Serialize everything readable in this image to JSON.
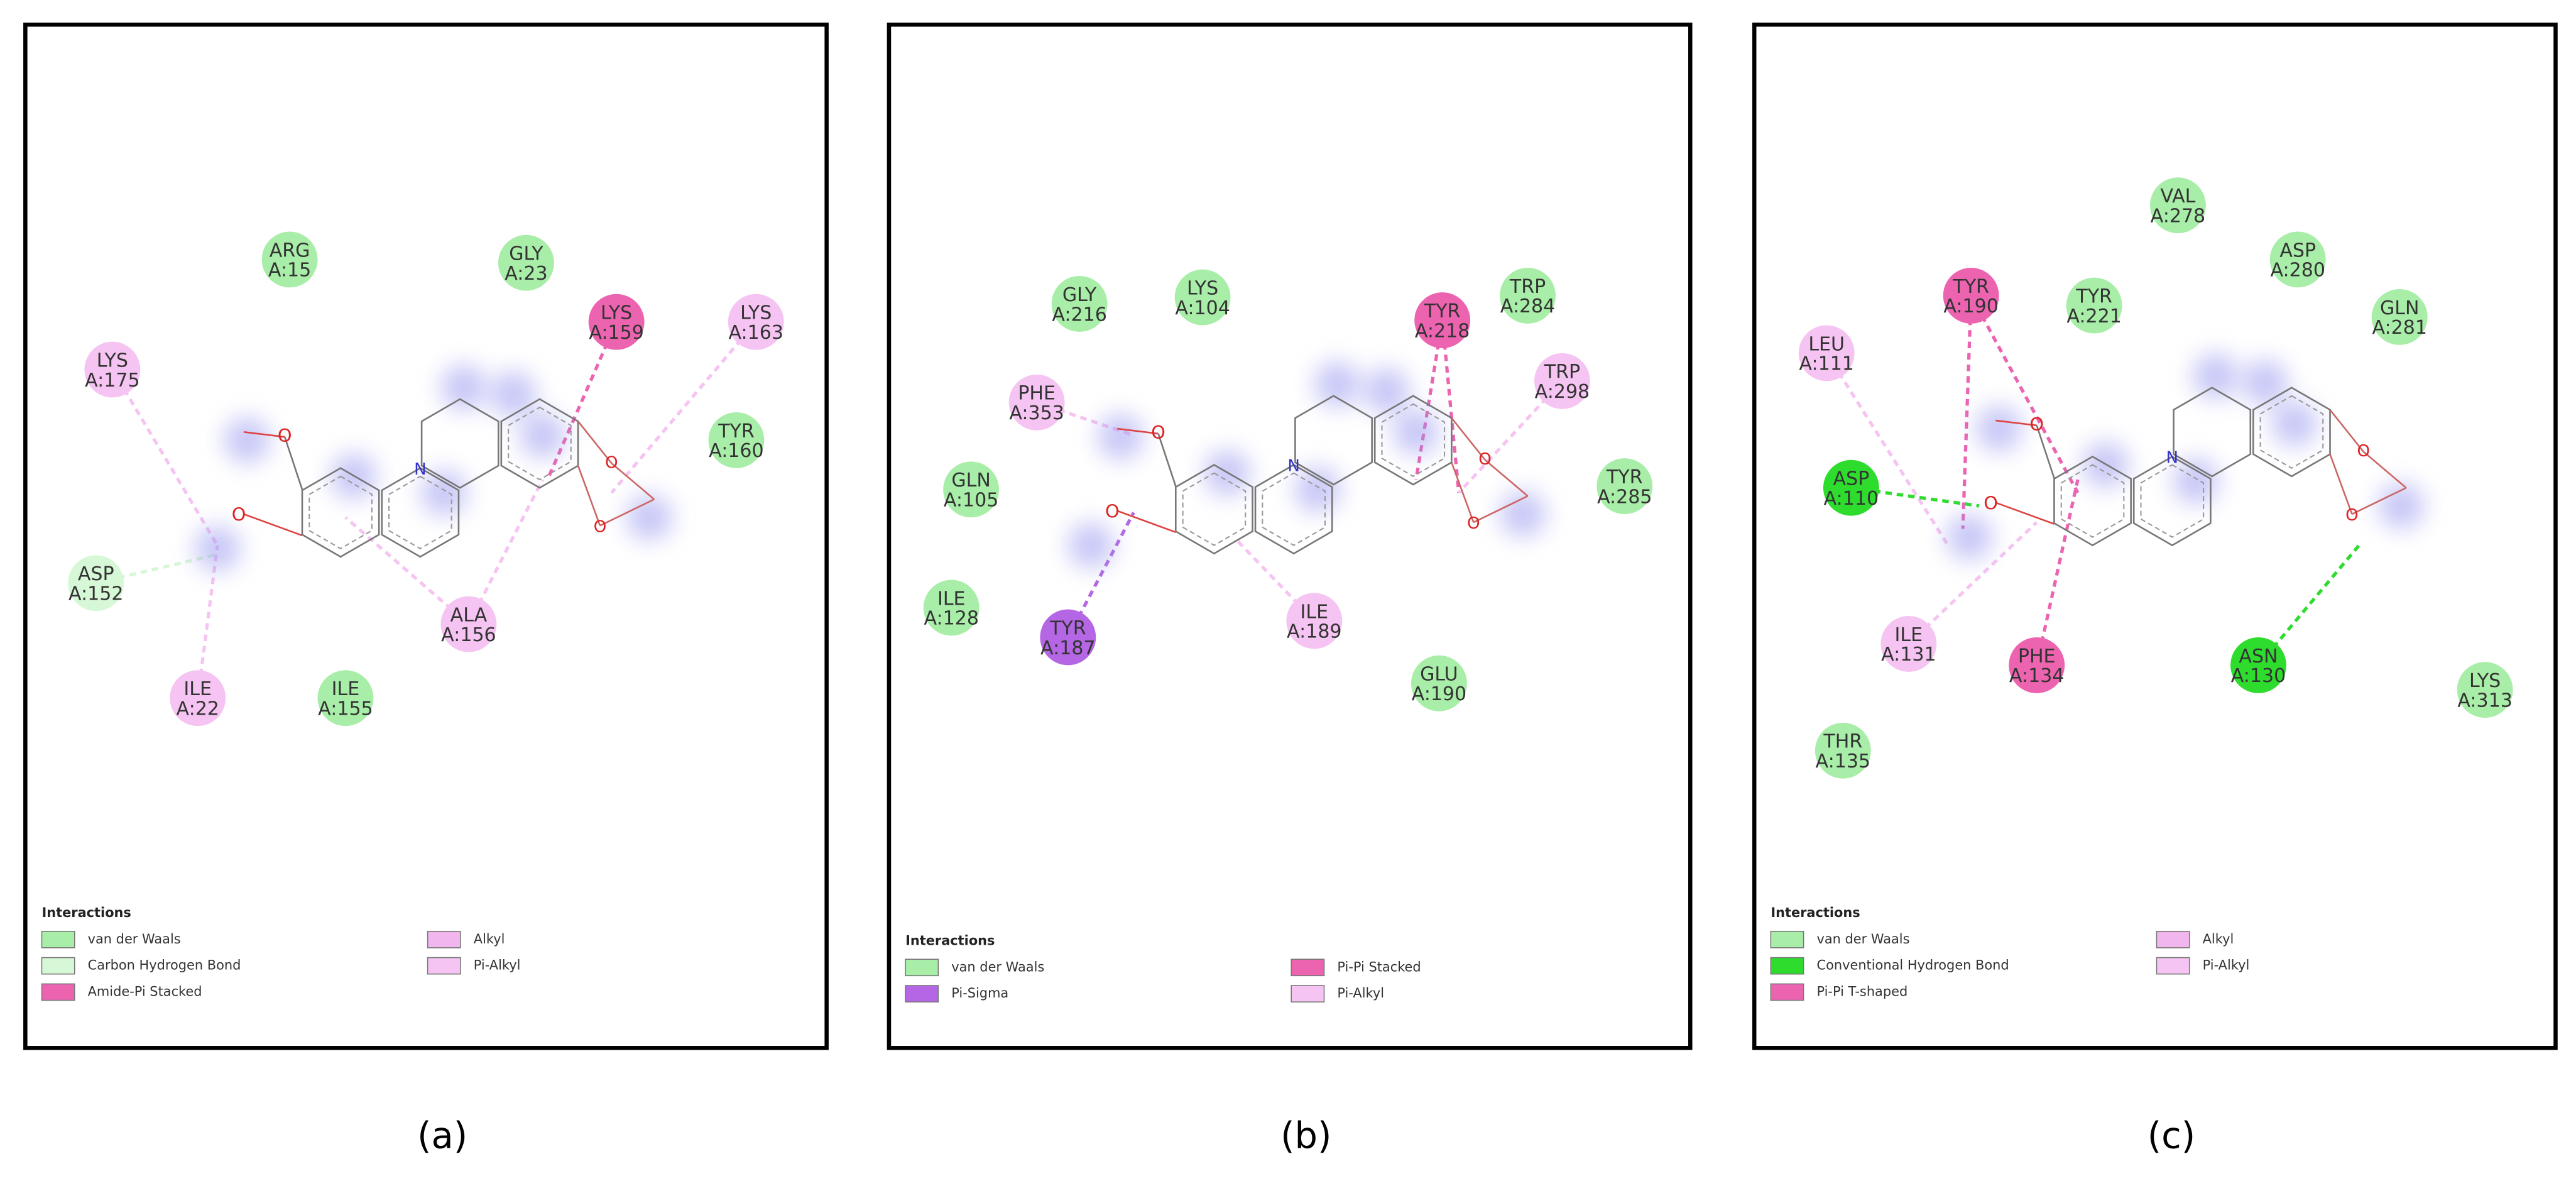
{
  "panels": [
    {
      "label": "(a)",
      "residues": [
        {
          "name": "ARG",
          "id": "A:15",
          "color": "#a8eea8"
        },
        {
          "name": "GLY",
          "id": "A:23",
          "color": "#a8eea8"
        },
        {
          "name": "LYS",
          "id": "A:159",
          "color": "#ec63b0"
        },
        {
          "name": "LYS",
          "id": "A:163",
          "color": "#f6c4f2"
        },
        {
          "name": "LYS",
          "id": "A:175",
          "color": "#f6c4f2"
        },
        {
          "name": "TYR",
          "id": "A:160",
          "color": "#a8eea8"
        },
        {
          "name": "ASP",
          "id": "A:152",
          "color": "#d6f8d6"
        },
        {
          "name": "ALA",
          "id": "A:156",
          "color": "#f6c4f2"
        },
        {
          "name": "ILE",
          "id": "A:22",
          "color": "#f6c4f2"
        },
        {
          "name": "ILE",
          "id": "A:155",
          "color": "#a8eea8"
        }
      ],
      "legend": {
        "title": "Interactions",
        "items": [
          {
            "name": "van der Waals",
            "color": "#a8eea8"
          },
          {
            "name": "Carbon Hydrogen Bond",
            "color": "#d6f8d6"
          },
          {
            "name": "Amide-Pi Stacked",
            "color": "#ec63b0"
          },
          {
            "name": "Alkyl",
            "color": "#f2b6ee"
          },
          {
            "name": "Pi-Alkyl",
            "color": "#f6c4f2"
          }
        ]
      }
    },
    {
      "label": "(b)",
      "residues": [
        {
          "name": "GLY",
          "id": "A:216",
          "color": "#a8eea8"
        },
        {
          "name": "LYS",
          "id": "A:104",
          "color": "#a8eea8"
        },
        {
          "name": "TYR",
          "id": "A:218",
          "color": "#ec63b0"
        },
        {
          "name": "TRP",
          "id": "A:284",
          "color": "#a8eea8"
        },
        {
          "name": "TRP",
          "id": "A:298",
          "color": "#f6c4f2"
        },
        {
          "name": "PHE",
          "id": "A:353",
          "color": "#f6c4f2"
        },
        {
          "name": "GLN",
          "id": "A:105",
          "color": "#a8eea8"
        },
        {
          "name": "TYR",
          "id": "A:285",
          "color": "#a8eea8"
        },
        {
          "name": "ILE",
          "id": "A:128",
          "color": "#a8eea8"
        },
        {
          "name": "TYR",
          "id": "A:187",
          "color": "#b466e4"
        },
        {
          "name": "ILE",
          "id": "A:189",
          "color": "#f6c4f2"
        },
        {
          "name": "GLU",
          "id": "A:190",
          "color": "#a8eea8"
        }
      ],
      "legend": {
        "title": "Interactions",
        "items": [
          {
            "name": "van der Waals",
            "color": "#a8eea8"
          },
          {
            "name": "Pi-Sigma",
            "color": "#b466e4"
          },
          {
            "name": "Pi-Pi Stacked",
            "color": "#ec63b0"
          },
          {
            "name": "Pi-Alkyl",
            "color": "#f6c4f2"
          }
        ]
      }
    },
    {
      "label": "(c)",
      "residues": [
        {
          "name": "VAL",
          "id": "A:278",
          "color": "#a8eea8"
        },
        {
          "name": "ASP",
          "id": "A:280",
          "color": "#a8eea8"
        },
        {
          "name": "TYR",
          "id": "A:190",
          "color": "#ec63b0"
        },
        {
          "name": "TYR",
          "id": "A:221",
          "color": "#a8eea8"
        },
        {
          "name": "GLN",
          "id": "A:281",
          "color": "#a8eea8"
        },
        {
          "name": "LEU",
          "id": "A:111",
          "color": "#f6c4f2"
        },
        {
          "name": "ASP",
          "id": "A:110",
          "color": "#2edc2e"
        },
        {
          "name": "ILE",
          "id": "A:131",
          "color": "#f6c4f2"
        },
        {
          "name": "PHE",
          "id": "A:134",
          "color": "#ec63b0"
        },
        {
          "name": "ASN",
          "id": "A:130",
          "color": "#2edc2e"
        },
        {
          "name": "LYS",
          "id": "A:313",
          "color": "#a8eea8"
        },
        {
          "name": "THR",
          "id": "A:135",
          "color": "#a8eea8"
        }
      ],
      "legend": {
        "title": "Interactions",
        "items": [
          {
            "name": "van der Waals",
            "color": "#a8eea8"
          },
          {
            "name": "Conventional Hydrogen Bond",
            "color": "#2edc2e"
          },
          {
            "name": "Pi-Pi T-shaped",
            "color": "#ec63b0"
          },
          {
            "name": "Alkyl",
            "color": "#f2b6ee"
          },
          {
            "name": "Pi-Alkyl",
            "color": "#f6c4f2"
          }
        ]
      }
    }
  ]
}
